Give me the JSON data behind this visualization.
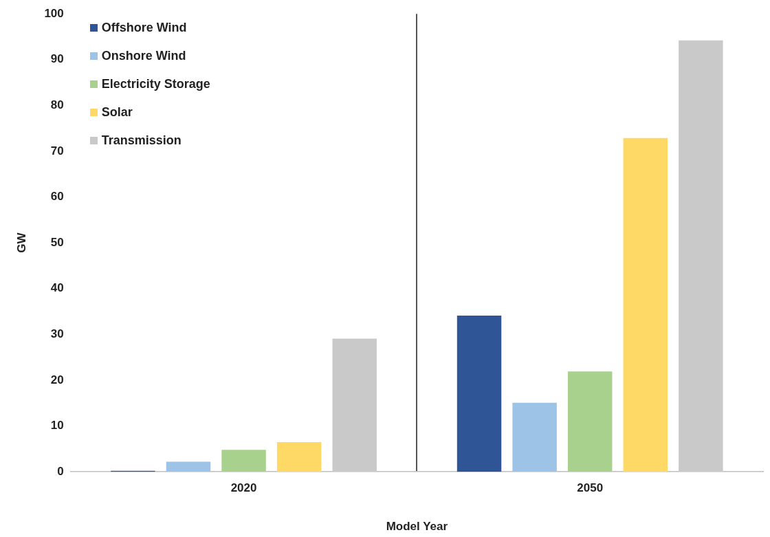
{
  "chart_data": {
    "type": "bar",
    "xlabel": "Model Year",
    "ylabel": "GW",
    "categories": [
      "2020",
      "2050"
    ],
    "series": [
      {
        "name": "Offshore Wind",
        "color": "#2f5597",
        "values": [
          0.2,
          34.1
        ]
      },
      {
        "name": "Onshore Wind",
        "color": "#9dc3e6",
        "values": [
          2.2,
          15.1
        ]
      },
      {
        "name": "Electricity Storage",
        "color": "#a9d18e",
        "values": [
          4.8,
          21.9
        ]
      },
      {
        "name": "Solar",
        "color": "#ffd966",
        "values": [
          6.5,
          72.9
        ]
      },
      {
        "name": "Transmission",
        "color": "#c9c9c9",
        "values": [
          29.1,
          94.2
        ]
      }
    ],
    "ylim": [
      0,
      100
    ],
    "yticks": [
      0,
      10,
      20,
      30,
      40,
      50,
      60,
      70,
      80,
      90,
      100
    ],
    "grid": "x",
    "legend": "top left"
  }
}
